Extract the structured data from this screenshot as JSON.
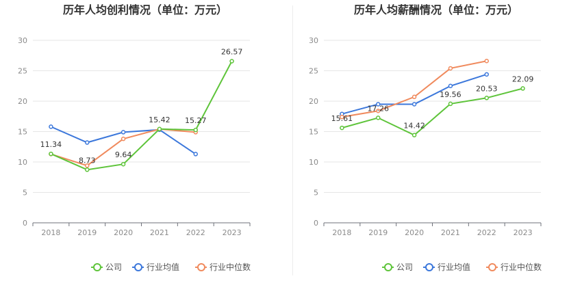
{
  "chart_data": [
    {
      "type": "line",
      "title": "历年人均创利情况（单位：万元）",
      "categories": [
        "2018",
        "2019",
        "2020",
        "2021",
        "2022",
        "2023"
      ],
      "ylim": [
        0,
        30
      ],
      "yticks": [
        0,
        5,
        10,
        15,
        20,
        25,
        30
      ],
      "grid": true,
      "legend_position": "bottom",
      "series": [
        {
          "name": "公司",
          "color": "#5ec43a",
          "values": [
            11.34,
            8.73,
            9.64,
            15.42,
            15.27,
            26.57
          ],
          "labels": [
            "11.34",
            "8.73",
            "9.64",
            "15.42",
            "15.27",
            "26.57"
          ]
        },
        {
          "name": "行业均值",
          "color": "#3b77db",
          "values": [
            15.8,
            13.2,
            14.9,
            15.3,
            11.3,
            null
          ]
        },
        {
          "name": "行业中位数",
          "color": "#f08a5d",
          "values": [
            11.3,
            9.4,
            13.8,
            15.4,
            14.9,
            null
          ]
        }
      ]
    },
    {
      "type": "line",
      "title": "历年人均薪酬情况（单位：万元）",
      "categories": [
        "2018",
        "2019",
        "2020",
        "2021",
        "2022",
        "2023"
      ],
      "ylim": [
        0,
        30
      ],
      "yticks": [
        0,
        5,
        10,
        15,
        20,
        25,
        30
      ],
      "grid": true,
      "legend_position": "bottom",
      "series": [
        {
          "name": "公司",
          "color": "#5ec43a",
          "values": [
            15.61,
            17.26,
            14.42,
            19.56,
            20.53,
            22.09
          ],
          "labels": [
            "15.61",
            "17.26",
            "14.42",
            "19.56",
            "20.53",
            "22.09"
          ]
        },
        {
          "name": "行业均值",
          "color": "#3b77db",
          "values": [
            17.9,
            19.5,
            19.5,
            22.5,
            24.4,
            null
          ]
        },
        {
          "name": "行业中位数",
          "color": "#f08a5d",
          "values": [
            17.4,
            18.4,
            20.7,
            25.4,
            26.6,
            null
          ]
        }
      ]
    }
  ]
}
